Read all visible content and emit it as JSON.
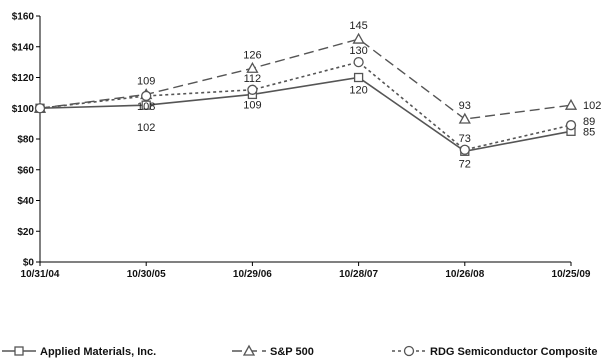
{
  "chart_data": {
    "type": "line",
    "x": [
      "10/31/04",
      "10/30/05",
      "10/29/06",
      "10/28/07",
      "10/26/08",
      "10/25/09"
    ],
    "ylim": [
      0,
      160
    ],
    "yticks": [
      "$0",
      "$20",
      "$40",
      "$60",
      "$80",
      "$100",
      "$120",
      "$140",
      "$160"
    ],
    "ytick_values": [
      0,
      20,
      40,
      60,
      80,
      100,
      120,
      140,
      160
    ],
    "grid": false,
    "legend_position": "bottom",
    "series": [
      {
        "name": "Applied Materials, Inc.",
        "key": "amat",
        "marker": "square",
        "dash": "solid",
        "color": "#555555",
        "values": [
          100,
          102,
          109,
          120,
          72,
          85
        ],
        "labels": [
          "",
          "102",
          "109",
          "120",
          "72",
          "85"
        ]
      },
      {
        "name": "S&P 500",
        "key": "sp500",
        "marker": "triangle",
        "dash": "dashed",
        "color": "#555555",
        "values": [
          100,
          109,
          126,
          145,
          93,
          102
        ],
        "labels": [
          "",
          "109",
          "126",
          "145",
          "93",
          "102"
        ]
      },
      {
        "name": "RDG Semiconductor Composite",
        "key": "rdg",
        "marker": "circle",
        "dash": "dotted",
        "color": "#555555",
        "values": [
          100,
          108,
          112,
          130,
          73,
          89
        ],
        "labels": [
          "",
          "108",
          "112",
          "130",
          "73",
          "89"
        ]
      }
    ]
  }
}
